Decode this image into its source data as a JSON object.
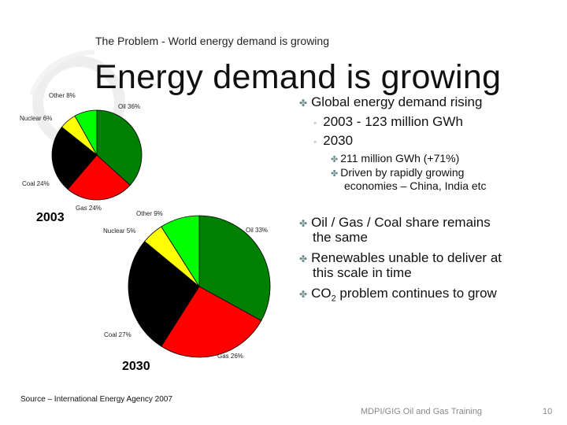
{
  "slide": {
    "header": "The Problem - World energy demand is growing",
    "title": "Energy demand is growing",
    "source": "Source – International Energy Agency 2007",
    "footer": "MDPI/GIG Oil and Gas Training",
    "page_number": "10"
  },
  "bullets": {
    "b1": "Global energy demand rising",
    "b1_sub1": "2003 - 123 million GWh",
    "b1_sub2": "2030",
    "b1_sub2_a": "211 million GWh (+71%)",
    "b1_sub2_b_line1": "Driven by rapidly growing",
    "b1_sub2_b_line2": "economies – China, India etc",
    "b2_line1": "Oil / Gas / Coal share remains",
    "b2_line2": "the same",
    "b3_line1": "Renewables unable to deliver at",
    "b3_line2": "this scale in time",
    "b4_pre": "CO",
    "b4_sub": "2",
    "b4_post": " problem continues to grow"
  },
  "colors": {
    "oil": "#008000",
    "gas": "#ff0000",
    "coal": "#000000",
    "nuclear": "#ffff00",
    "other": "#00ff00"
  },
  "chart_data": [
    {
      "type": "pie",
      "title": "2003",
      "categories": [
        "Oil",
        "Gas",
        "Coal",
        "Nuclear",
        "Other"
      ],
      "values": [
        36,
        24,
        24,
        6,
        8
      ],
      "labels": [
        "Oil 36%",
        "Gas 24%",
        "Coal 24%",
        "Nuclear 6%",
        "Other 8%"
      ]
    },
    {
      "type": "pie",
      "title": "2030",
      "categories": [
        "Oil",
        "Gas",
        "Coal",
        "Nuclear",
        "Other"
      ],
      "values": [
        33,
        26,
        27,
        5,
        9
      ],
      "labels": [
        "Oil 33%",
        "Gas 26%",
        "Coal 27%",
        "Nuclear 5%",
        "Other 9%"
      ]
    }
  ]
}
